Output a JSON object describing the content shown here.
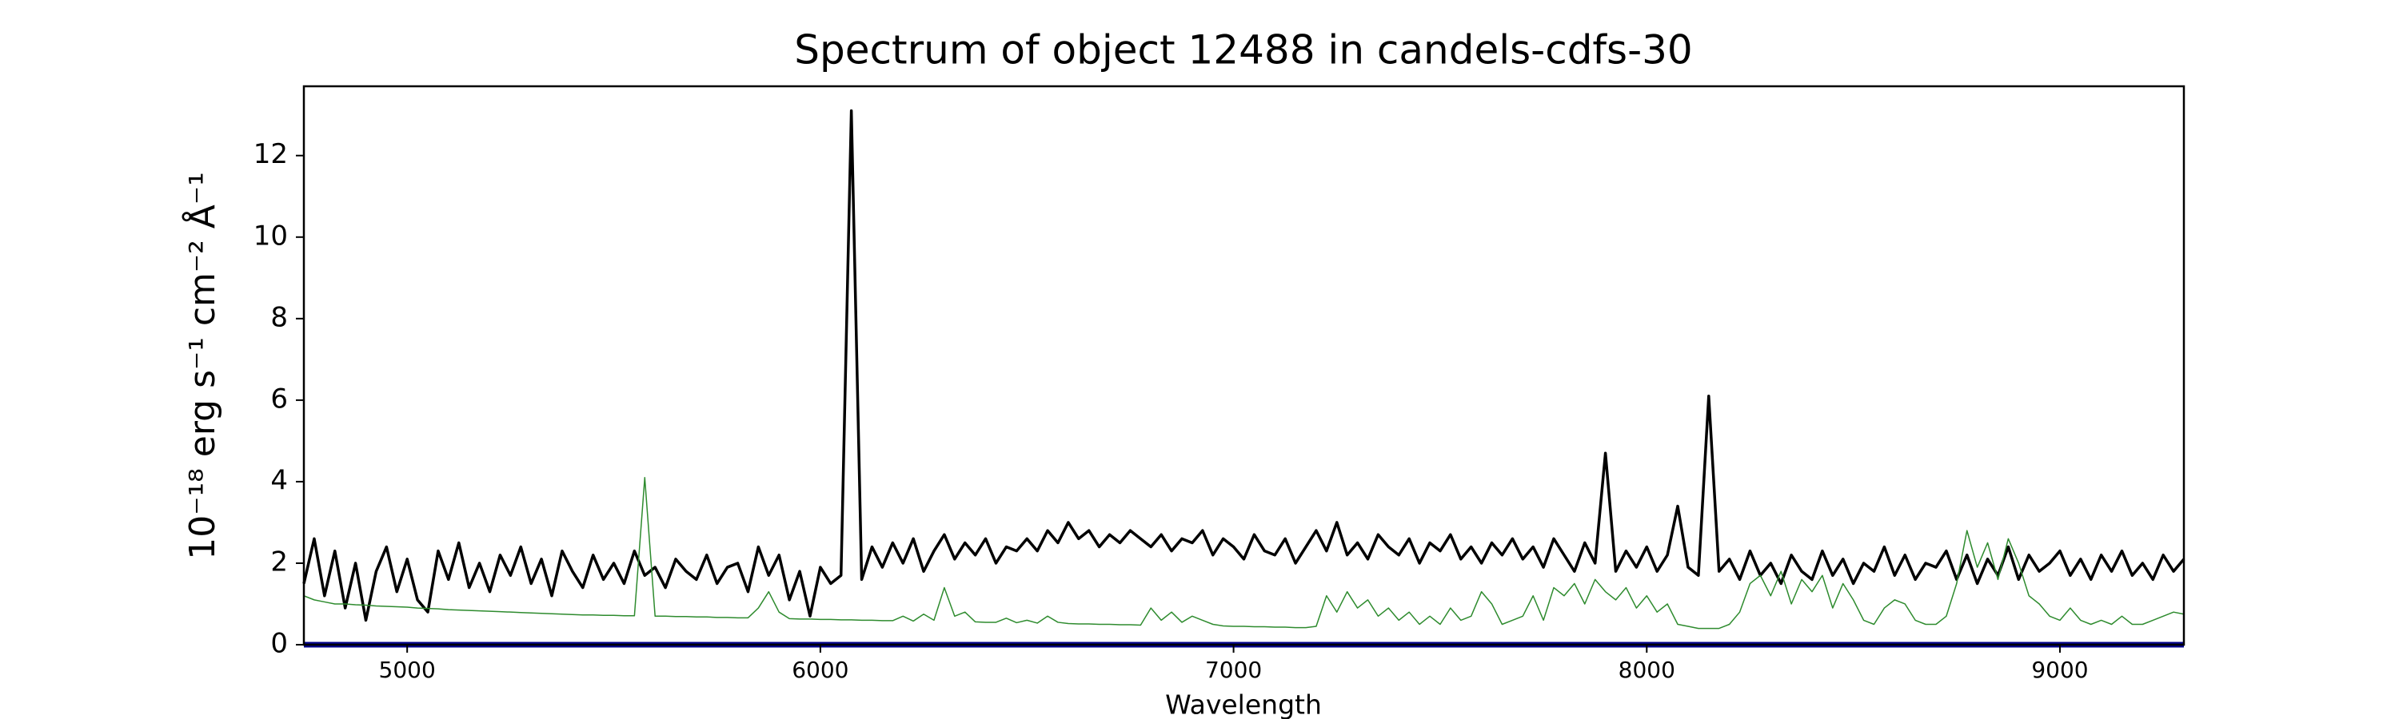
{
  "chart_data": {
    "type": "line",
    "title": "Spectrum of object 12488 in candels-cdfs-30",
    "xlabel": "Wavelength",
    "ylabel": "10⁻¹⁸ erg s⁻¹ cm⁻² Å⁻¹",
    "xlim": [
      4750,
      9300
    ],
    "ylim": [
      0,
      13.7
    ],
    "xticks": [
      5000,
      6000,
      7000,
      8000,
      9000
    ],
    "yticks": [
      0,
      2,
      4,
      6,
      8,
      10,
      12
    ],
    "grid": false,
    "x": [
      4750,
      4775,
      4800,
      4825,
      4850,
      4875,
      4900,
      4925,
      4950,
      4975,
      5000,
      5025,
      5050,
      5075,
      5100,
      5125,
      5150,
      5175,
      5200,
      5225,
      5250,
      5275,
      5300,
      5325,
      5350,
      5375,
      5400,
      5425,
      5450,
      5475,
      5500,
      5525,
      5550,
      5575,
      5600,
      5625,
      5650,
      5675,
      5700,
      5725,
      5750,
      5775,
      5800,
      5825,
      5850,
      5875,
      5900,
      5925,
      5950,
      5975,
      6000,
      6025,
      6050,
      6075,
      6100,
      6125,
      6150,
      6175,
      6200,
      6225,
      6250,
      6275,
      6300,
      6325,
      6350,
      6375,
      6400,
      6425,
      6450,
      6475,
      6500,
      6525,
      6550,
      6575,
      6600,
      6625,
      6650,
      6675,
      6700,
      6725,
      6750,
      6775,
      6800,
      6825,
      6850,
      6875,
      6900,
      6925,
      6950,
      6975,
      7000,
      7025,
      7050,
      7075,
      7100,
      7125,
      7150,
      7175,
      7200,
      7225,
      7250,
      7275,
      7300,
      7325,
      7350,
      7375,
      7400,
      7425,
      7450,
      7475,
      7500,
      7525,
      7550,
      7575,
      7600,
      7625,
      7650,
      7675,
      7700,
      7725,
      7750,
      7775,
      7800,
      7825,
      7850,
      7875,
      7900,
      7925,
      7950,
      7975,
      8000,
      8025,
      8050,
      8075,
      8100,
      8125,
      8150,
      8175,
      8200,
      8225,
      8250,
      8275,
      8300,
      8325,
      8350,
      8375,
      8400,
      8425,
      8450,
      8475,
      8500,
      8525,
      8550,
      8575,
      8600,
      8625,
      8650,
      8675,
      8700,
      8725,
      8750,
      8775,
      8800,
      8825,
      8850,
      8875,
      8900,
      8925,
      8950,
      8975,
      9000,
      9025,
      9050,
      9075,
      9100,
      9125,
      9150,
      9175,
      9200,
      9225,
      9250,
      9275,
      9300
    ],
    "series": [
      {
        "color": "#000000",
        "values": [
          1.5,
          2.6,
          1.2,
          2.3,
          0.9,
          2.0,
          0.6,
          1.8,
          2.4,
          1.3,
          2.1,
          1.1,
          0.8,
          2.3,
          1.6,
          2.5,
          1.4,
          2.0,
          1.3,
          2.2,
          1.7,
          2.4,
          1.5,
          2.1,
          1.2,
          2.3,
          1.8,
          1.4,
          2.2,
          1.6,
          2.0,
          1.5,
          2.3,
          1.7,
          1.9,
          1.4,
          2.1,
          1.8,
          1.6,
          2.2,
          1.5,
          1.9,
          2.0,
          1.3,
          2.4,
          1.7,
          2.2,
          1.1,
          1.8,
          0.7,
          1.9,
          1.5,
          1.7,
          13.1,
          1.6,
          2.4,
          1.9,
          2.5,
          2.0,
          2.6,
          1.8,
          2.3,
          2.7,
          2.1,
          2.5,
          2.2,
          2.6,
          2.0,
          2.4,
          2.3,
          2.6,
          2.3,
          2.8,
          2.5,
          3.0,
          2.6,
          2.8,
          2.4,
          2.7,
          2.5,
          2.8,
          2.6,
          2.4,
          2.7,
          2.3,
          2.6,
          2.5,
          2.8,
          2.2,
          2.6,
          2.4,
          2.1,
          2.7,
          2.3,
          2.2,
          2.6,
          2.0,
          2.4,
          2.8,
          2.3,
          3.0,
          2.2,
          2.5,
          2.1,
          2.7,
          2.4,
          2.2,
          2.6,
          2.0,
          2.5,
          2.3,
          2.7,
          2.1,
          2.4,
          2.0,
          2.5,
          2.2,
          2.6,
          2.1,
          2.4,
          1.9,
          2.6,
          2.2,
          1.8,
          2.5,
          2.0,
          4.7,
          1.8,
          2.3,
          1.9,
          2.4,
          1.8,
          2.2,
          3.4,
          1.9,
          1.7,
          6.1,
          1.8,
          2.1,
          1.6,
          2.3,
          1.7,
          2.0,
          1.5,
          2.2,
          1.8,
          1.6,
          2.3,
          1.7,
          2.1,
          1.5,
          2.0,
          1.8,
          2.4,
          1.7,
          2.2,
          1.6,
          2.0,
          1.9,
          2.3,
          1.6,
          2.2,
          1.5,
          2.1,
          1.7,
          2.4,
          1.6,
          2.2,
          1.8,
          2.0,
          2.3,
          1.7,
          2.1,
          1.6,
          2.2,
          1.8,
          2.3,
          1.7,
          2.0,
          1.6,
          2.2,
          1.8,
          2.1
        ]
      },
      {
        "color": "#2e8b2e",
        "values": [
          1.2,
          1.1,
          1.05,
          1.0,
          1.0,
          0.98,
          0.97,
          0.95,
          0.94,
          0.93,
          0.92,
          0.9,
          0.89,
          0.88,
          0.86,
          0.85,
          0.84,
          0.83,
          0.82,
          0.81,
          0.8,
          0.79,
          0.78,
          0.77,
          0.76,
          0.75,
          0.74,
          0.73,
          0.73,
          0.72,
          0.72,
          0.71,
          0.71,
          4.1,
          0.7,
          0.7,
          0.69,
          0.69,
          0.68,
          0.68,
          0.67,
          0.67,
          0.66,
          0.66,
          0.9,
          1.3,
          0.8,
          0.64,
          0.63,
          0.63,
          0.62,
          0.62,
          0.61,
          0.61,
          0.6,
          0.6,
          0.59,
          0.59,
          0.7,
          0.58,
          0.75,
          0.6,
          1.4,
          0.7,
          0.8,
          0.56,
          0.55,
          0.55,
          0.65,
          0.54,
          0.6,
          0.53,
          0.7,
          0.55,
          0.52,
          0.51,
          0.51,
          0.5,
          0.5,
          0.49,
          0.49,
          0.48,
          0.9,
          0.6,
          0.8,
          0.55,
          0.7,
          0.6,
          0.5,
          0.46,
          0.45,
          0.45,
          0.44,
          0.44,
          0.43,
          0.43,
          0.42,
          0.42,
          0.45,
          1.2,
          0.8,
          1.3,
          0.9,
          1.1,
          0.7,
          0.9,
          0.6,
          0.8,
          0.5,
          0.7,
          0.5,
          0.9,
          0.6,
          0.7,
          1.3,
          1.0,
          0.5,
          0.6,
          0.7,
          1.2,
          0.6,
          1.4,
          1.2,
          1.5,
          1.0,
          1.6,
          1.3,
          1.1,
          1.4,
          0.9,
          1.2,
          0.8,
          1.0,
          0.5,
          0.45,
          0.4,
          0.4,
          0.4,
          0.5,
          0.8,
          1.5,
          1.7,
          1.2,
          1.8,
          1.0,
          1.6,
          1.3,
          1.7,
          0.9,
          1.5,
          1.1,
          0.6,
          0.5,
          0.9,
          1.1,
          1.0,
          0.6,
          0.5,
          0.5,
          0.7,
          1.5,
          2.8,
          1.9,
          2.5,
          1.6,
          2.6,
          2.0,
          1.2,
          1.0,
          0.7,
          0.6,
          0.9,
          0.6,
          0.5,
          0.6,
          0.5,
          0.7,
          0.5,
          0.5,
          0.6,
          0.7,
          0.8,
          0.75
        ]
      },
      {
        "color": "#00008b",
        "values": [
          0,
          0,
          0,
          0,
          0,
          0,
          0,
          0,
          0,
          0,
          0,
          0,
          0,
          0,
          0,
          0,
          0,
          0,
          0,
          0,
          0,
          0,
          0,
          0,
          0,
          0,
          0,
          0,
          0,
          0,
          0,
          0,
          0,
          0,
          0,
          0,
          0,
          0,
          0,
          0,
          0,
          0,
          0,
          0,
          0,
          0,
          0,
          0,
          0,
          0,
          0,
          0,
          0,
          0,
          0,
          0,
          0,
          0,
          0,
          0,
          0,
          0,
          0,
          0,
          0,
          0,
          0,
          0,
          0,
          0,
          0,
          0,
          0,
          0,
          0,
          0,
          0,
          0,
          0,
          0,
          0,
          0,
          0,
          0,
          0,
          0,
          0,
          0,
          0,
          0,
          0,
          0,
          0,
          0,
          0,
          0,
          0,
          0,
          0,
          0,
          0,
          0,
          0,
          0,
          0,
          0,
          0,
          0,
          0,
          0,
          0,
          0,
          0,
          0,
          0,
          0,
          0,
          0,
          0,
          0,
          0,
          0,
          0,
          0,
          0,
          0,
          0,
          0,
          0,
          0,
          0,
          0,
          0,
          0,
          0,
          0,
          0,
          0,
          0,
          0,
          0,
          0,
          0,
          0,
          0,
          0,
          0,
          0,
          0,
          0,
          0,
          0,
          0,
          0,
          0,
          0,
          0,
          0,
          0,
          0,
          0,
          0,
          0,
          0,
          0,
          0,
          0,
          0,
          0,
          0,
          0,
          0,
          0,
          0,
          0,
          0,
          0,
          0,
          0,
          0,
          0,
          0,
          0
        ]
      }
    ]
  }
}
